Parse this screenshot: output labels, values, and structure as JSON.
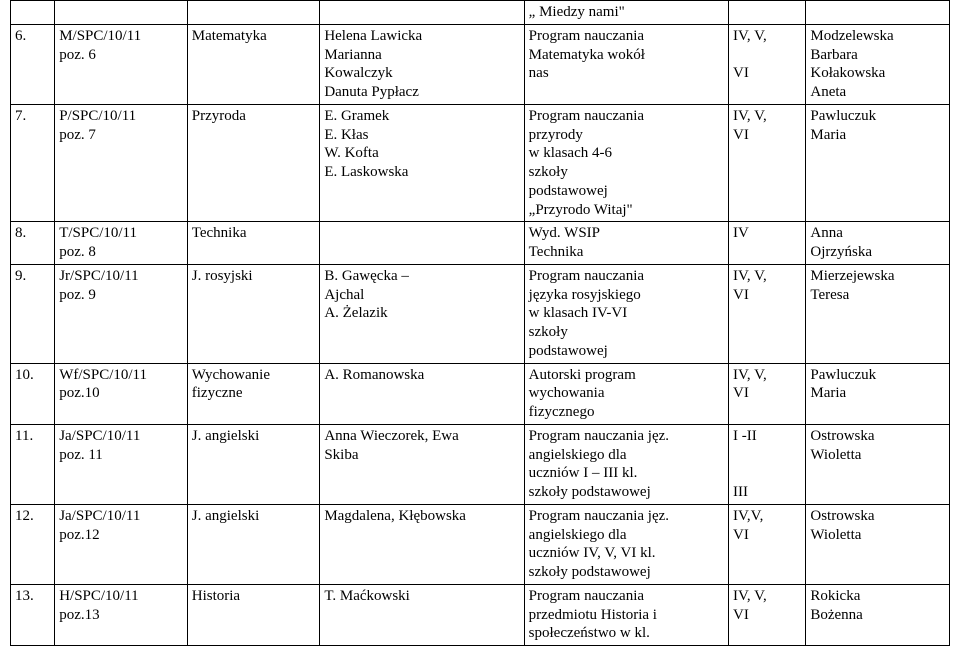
{
  "table": {
    "rows": [
      {
        "lp": "",
        "sig": "",
        "subject": "",
        "teachers": "",
        "program": "„ Miedzy nami\"",
        "classes": "",
        "supervisor": ""
      },
      {
        "lp": "6.",
        "sig": "M/SPC/10/11\npoz. 6",
        "subject": "Matematyka",
        "teachers": "Helena Lawicka\nMarianna\nKowalczyk\nDanuta Pypłacz",
        "program": "Program nauczania\nMatematyka wokół\nnas",
        "classes": "IV, V,\n\nVI",
        "supervisor": "Modzelewska\nBarbara\nKołakowska\n Aneta"
      },
      {
        "lp": "7.",
        "sig": "P/SPC/10/11\npoz. 7",
        "subject": "Przyroda",
        "teachers": "E. Gramek\nE. Kłas\nW. Kofta\nE. Laskowska",
        "program": "Program nauczania\nprzyrody\nw klasach  4-6\nszkoły\npodstawowej\n„Przyrodo Witaj\"",
        "classes": "IV, V,\nVI",
        "supervisor": "Pawluczuk\n Maria"
      },
      {
        "lp": "8.",
        "sig": "T/SPC/10/11\npoz. 8",
        "subject": "Technika",
        "teachers": "",
        "program": "Wyd. WSIP\nTechnika",
        "classes": "IV",
        "supervisor": "Anna\nOjrzyńska"
      },
      {
        "lp": "9.",
        "sig": "Jr/SPC/10/11\npoz. 9",
        "subject": "J. rosyjski",
        "teachers": "B. Gawęcka –\nAjchal\nA. Żelazik",
        "program": "Program nauczania\njęzyka rosyjskiego\nw klasach IV-VI\nszkoły\npodstawowej",
        "classes": "IV, V,\nVI",
        "supervisor": "Mierzejewska\nTeresa"
      },
      {
        "lp": "10.",
        "sig": "Wf/SPC/10/11\npoz.10",
        "subject": "Wychowanie\nfizyczne",
        "teachers": "A. Romanowska",
        "program": "Autorski program\nwychowania\nfizycznego",
        "classes": "IV, V,\nVI",
        "supervisor": "Pawluczuk\nMaria"
      },
      {
        "lp": "11.",
        "sig": "Ja/SPC/10/11\npoz. 11",
        "subject": "J. angielski",
        "teachers": "Anna Wieczorek, Ewa\nSkiba",
        "program": "Program nauczania jęz.\nangielskiego dla\nuczniów I – III kl.\nszkoły podstawowej",
        "classes": "I -II\n\n\nIII",
        "supervisor": "Ostrowska\n  Wioletta"
      },
      {
        "lp": "12.",
        "sig": "Ja/SPC/10/11\npoz.12",
        "subject": "J. angielski",
        "teachers": "Magdalena, Kłębowska",
        "program": "Program nauczania jęz.\nangielskiego dla\nuczniów IV, V, VI kl.\nszkoły podstawowej",
        "classes": "IV,V,\nVI",
        "supervisor": "Ostrowska\nWioletta"
      },
      {
        "lp": "13.",
        "sig": "H/SPC/10/11\npoz.13",
        "subject": "Historia",
        "teachers": "T. Maćkowski",
        "program": "Program nauczania\nprzedmiotu Historia i\nspołeczeństwo w kl.",
        "classes": "IV, V,\nVI",
        "supervisor": "Rokicka\n  Bożenna"
      }
    ]
  }
}
